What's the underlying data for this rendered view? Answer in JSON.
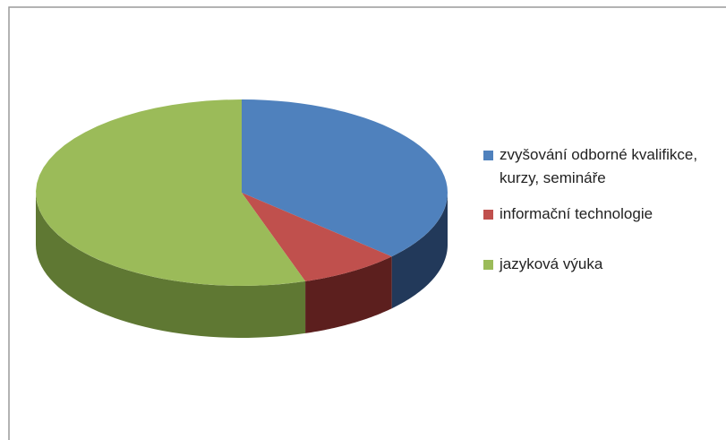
{
  "chart_data": {
    "type": "pie3d",
    "categories": [
      "zvyšování odborné kvalifikce, kurzy, semináře",
      "informační technologie",
      "jazyková výuka"
    ],
    "values": [
      37,
      8,
      55
    ],
    "colors": [
      "#4f81bd",
      "#c0504d",
      "#9bbb59"
    ],
    "side_colors": [
      "#22395a",
      "#5c1f1e",
      "#5f7833"
    ],
    "legend": "right"
  }
}
